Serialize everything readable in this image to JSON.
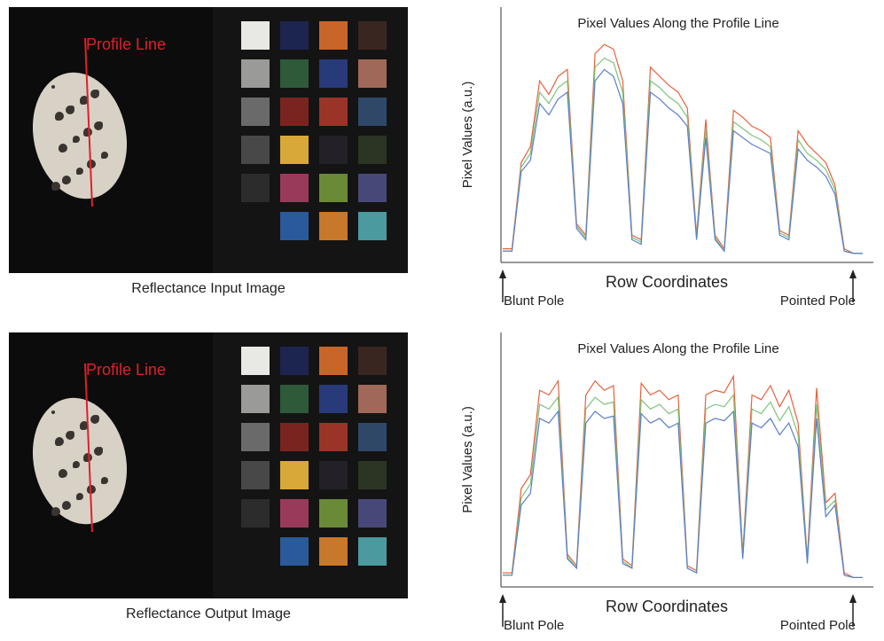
{
  "images": [
    {
      "label": "Profile Line",
      "caption": "Reflectance Input Image"
    },
    {
      "label": "Profile Line",
      "caption": "Reflectance Output Image"
    }
  ],
  "chart_data": [
    {
      "type": "line",
      "title": "Pixel Values Along the Profile Line",
      "xlabel": "Row Coordinates",
      "ylabel": "Pixel Values (a.u.)",
      "annotations": [
        "Blunt Pole",
        "Pointed Pole"
      ],
      "ylim": [
        0,
        100
      ],
      "series": [
        {
          "color": "#e8603c",
          "values": [
            6,
            6,
            44,
            51,
            80,
            74,
            82,
            85,
            17,
            12,
            92,
            96,
            94,
            80,
            12,
            10,
            86,
            82,
            78,
            75,
            68,
            12,
            63,
            12,
            6,
            67,
            64,
            60,
            58,
            55,
            14,
            12,
            58,
            52,
            48,
            44,
            34,
            6,
            4,
            4
          ]
        },
        {
          "color": "#7cc47a",
          "values": [
            5,
            5,
            42,
            48,
            75,
            70,
            77,
            80,
            16,
            11,
            86,
            90,
            88,
            75,
            11,
            9,
            80,
            77,
            73,
            70,
            64,
            11,
            59,
            11,
            5,
            62,
            59,
            56,
            54,
            51,
            13,
            11,
            54,
            48,
            45,
            41,
            32,
            5,
            4,
            4
          ]
        },
        {
          "color": "#5a7fc8",
          "values": [
            5,
            5,
            40,
            45,
            70,
            65,
            72,
            75,
            15,
            10,
            80,
            85,
            82,
            70,
            10,
            8,
            75,
            72,
            68,
            65,
            60,
            10,
            55,
            10,
            5,
            58,
            55,
            52,
            50,
            48,
            12,
            10,
            50,
            45,
            42,
            38,
            30,
            5,
            4,
            4
          ]
        }
      ]
    },
    {
      "type": "line",
      "title": "Pixel Values Along the Profile Line",
      "xlabel": "Row Coordinates",
      "ylabel": "Pixel Values (a.u.)",
      "annotations": [
        "Blunt Pole",
        "Pointed Pole"
      ],
      "ylim": [
        0,
        100
      ],
      "series": [
        {
          "color": "#e8603c",
          "values": [
            6,
            6,
            42,
            48,
            84,
            82,
            88,
            14,
            9,
            82,
            88,
            84,
            86,
            12,
            9,
            87,
            82,
            84,
            80,
            82,
            9,
            7,
            82,
            84,
            83,
            90,
            14,
            82,
            80,
            86,
            77,
            84,
            70,
            12,
            85,
            36,
            40,
            6,
            4,
            4
          ]
        },
        {
          "color": "#7cc47a",
          "values": [
            5,
            5,
            38,
            44,
            78,
            76,
            81,
            13,
            8,
            76,
            81,
            78,
            79,
            11,
            8,
            80,
            76,
            78,
            74,
            76,
            8,
            6,
            76,
            78,
            77,
            82,
            13,
            76,
            74,
            79,
            71,
            77,
            65,
            11,
            78,
            33,
            37,
            5,
            4,
            4
          ]
        },
        {
          "color": "#5a7fc8",
          "values": [
            5,
            5,
            35,
            40,
            72,
            70,
            75,
            12,
            8,
            70,
            75,
            72,
            73,
            10,
            8,
            74,
            70,
            72,
            68,
            70,
            8,
            6,
            70,
            72,
            71,
            75,
            12,
            70,
            68,
            72,
            65,
            70,
            60,
            10,
            72,
            30,
            35,
            5,
            4,
            4
          ]
        }
      ]
    }
  ]
}
